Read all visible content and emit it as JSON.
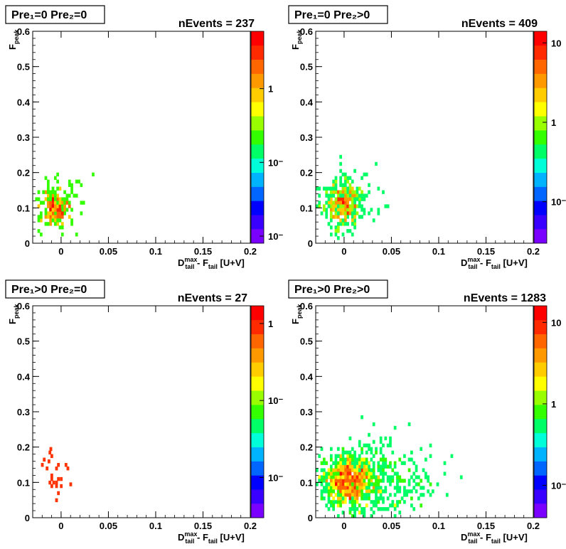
{
  "page": {
    "background": "#ffffff"
  },
  "colz_palette": [
    "#7a00ff",
    "#3a00ff",
    "#0000ff",
    "#0066ff",
    "#00b3ff",
    "#00ffd9",
    "#00ff66",
    "#33ff00",
    "#99ff00",
    "#ffff00",
    "#ffcc00",
    "#ff9900",
    "#ff6600",
    "#ff2a00",
    "#ff0000"
  ],
  "chart_data": [
    {
      "type": "heatmap",
      "title": "Pre₁=0  Pre₂=0",
      "stats_label": "nEvents = 237",
      "xlabel": "Dᵐᵃˣ_tail - F_tail [U+V]",
      "ylabel": "F_peak",
      "xlim": [
        -0.03,
        0.2
      ],
      "ylim": [
        0,
        0.6
      ],
      "x_ticks": [
        "0",
        "0.05",
        "0.1",
        "0.15",
        "0.2"
      ],
      "y_ticks": [
        "0",
        "0.1",
        "0.2",
        "0.3",
        "0.4",
        "0.5",
        "0.6"
      ],
      "colorbar": {
        "scale": "log",
        "range": [
          0.008,
          6
        ],
        "labels": [
          {
            "text": "1",
            "value": 1
          },
          {
            "text": "10⁻¹",
            "value": 0.1
          },
          {
            "text": "10⁻²",
            "value": 0.01
          }
        ]
      },
      "clusters": [
        {
          "x": -0.006,
          "y": 0.1,
          "sx": 0.007,
          "sy": 0.028,
          "n": 190,
          "maxw": 5
        },
        {
          "x": -0.003,
          "y": 0.12,
          "sx": 0.016,
          "sy": 0.04,
          "n": 55,
          "maxw": 0.3
        }
      ],
      "seed": 11
    },
    {
      "type": "heatmap",
      "title": "Pre₁=0  Pre₂>0",
      "stats_label": "nEvents = 409",
      "xlabel": "Dᵐᵃˣ_tail - F_tail [U+V]",
      "ylabel": "F_peak",
      "xlim": [
        -0.03,
        0.2
      ],
      "ylim": [
        0,
        0.6
      ],
      "x_ticks": [
        "0",
        "0.05",
        "0.1",
        "0.15",
        "0.2"
      ],
      "y_ticks": [
        "0",
        "0.1",
        "0.2",
        "0.3",
        "0.4",
        "0.5",
        "0.6"
      ],
      "colorbar": {
        "scale": "log",
        "range": [
          0.03,
          14
        ],
        "labels": [
          {
            "text": "10",
            "value": 10
          },
          {
            "text": "1",
            "value": 1
          },
          {
            "text": "10⁻¹",
            "value": 0.1
          }
        ]
      },
      "clusters": [
        {
          "x": -0.003,
          "y": 0.11,
          "sx": 0.009,
          "sy": 0.032,
          "n": 300,
          "maxw": 10
        },
        {
          "x": 0.003,
          "y": 0.12,
          "sx": 0.018,
          "sy": 0.045,
          "n": 110,
          "maxw": 1.5
        }
      ],
      "seed": 23
    },
    {
      "type": "heatmap",
      "title": "Pre₁>0  Pre₂=0",
      "stats_label": "nEvents = 27",
      "xlabel": "Dᵐᵃˣ_tail - F_tail [U+V]",
      "ylabel": "F_peak",
      "xlim": [
        -0.03,
        0.2
      ],
      "ylim": [
        0,
        0.6
      ],
      "x_ticks": [
        "0",
        "0.05",
        "0.1",
        "0.15",
        "0.2"
      ],
      "y_ticks": [
        "0",
        "0.1",
        "0.2",
        "0.3",
        "0.4",
        "0.5",
        "0.6"
      ],
      "colorbar": {
        "scale": "log",
        "range": [
          0.003,
          1.7
        ],
        "labels": [
          {
            "text": "1",
            "value": 1
          },
          {
            "text": "10⁻¹",
            "value": 0.1
          },
          {
            "text": "10⁻²",
            "value": 0.01
          }
        ]
      },
      "points": [
        [
          -0.011,
          0.195
        ],
        [
          -0.012,
          0.185
        ],
        [
          -0.01,
          0.175
        ],
        [
          -0.018,
          0.165
        ],
        [
          -0.013,
          0.16
        ],
        [
          -0.02,
          0.15
        ],
        [
          -0.003,
          0.15
        ],
        [
          0.005,
          0.15
        ],
        [
          -0.015,
          0.14
        ],
        [
          -0.005,
          0.14
        ],
        [
          0.007,
          0.14
        ],
        [
          -0.01,
          0.12
        ],
        [
          -0.003,
          0.11
        ],
        [
          -0.01,
          0.11
        ],
        [
          0.0,
          0.11
        ],
        [
          -0.008,
          0.1
        ],
        [
          -0.005,
          0.1
        ],
        [
          -0.012,
          0.1
        ],
        [
          0.01,
          0.095
        ],
        [
          -0.005,
          0.09
        ],
        [
          -0.01,
          0.09
        ],
        [
          0.0,
          0.09
        ],
        [
          -0.003,
          0.07
        ],
        [
          -0.005,
          0.05
        ]
      ],
      "point_color": "#ff3300",
      "seed": 5
    },
    {
      "type": "heatmap",
      "title": "Pre₁>0  Pre₂>0",
      "stats_label": "nEvents = 1283",
      "xlabel": "Dᵐᵃˣ_tail - F_tail [U+V]",
      "ylabel": "F_peak",
      "xlim": [
        -0.03,
        0.2
      ],
      "ylim": [
        0,
        0.6
      ],
      "x_ticks": [
        "0",
        "0.05",
        "0.1",
        "0.15",
        "0.2"
      ],
      "y_ticks": [
        "0",
        "0.1",
        "0.2",
        "0.3",
        "0.4",
        "0.5",
        "0.6"
      ],
      "colorbar": {
        "scale": "log",
        "range": [
          0.04,
          16
        ],
        "labels": [
          {
            "text": "10",
            "value": 10
          },
          {
            "text": "1",
            "value": 1
          },
          {
            "text": "10⁻¹",
            "value": 0.1
          }
        ]
      },
      "clusters": [
        {
          "x": 0.005,
          "y": 0.105,
          "sx": 0.012,
          "sy": 0.035,
          "n": 800,
          "maxw": 12
        },
        {
          "x": 0.02,
          "y": 0.11,
          "sx": 0.03,
          "sy": 0.05,
          "n": 380,
          "maxw": 3
        },
        {
          "x": 0.05,
          "y": 0.1,
          "sx": 0.035,
          "sy": 0.045,
          "n": 100,
          "maxw": 1
        }
      ],
      "seed": 41
    }
  ]
}
